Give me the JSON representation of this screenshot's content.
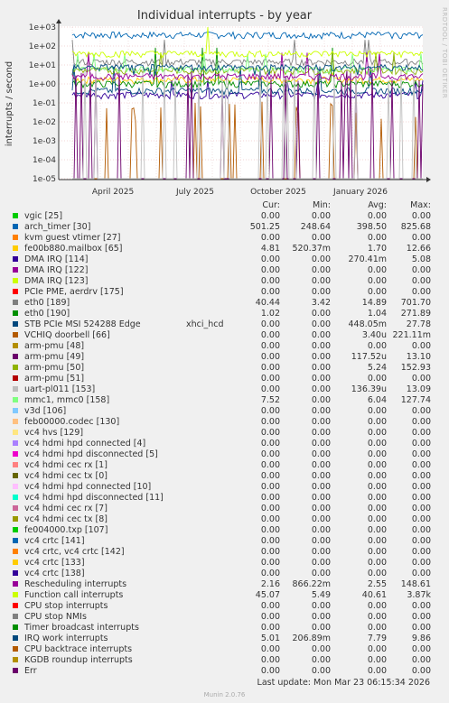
{
  "title": "Individual interrupts - by year",
  "side_credit": "RRDTOOL / TOBI OETIKER",
  "last_update": "Last update: Mon Mar 23 06:15:34 2026",
  "footer": "Munin 2.0.76",
  "chart_data": {
    "type": "line",
    "title": "Individual interrupts - by year",
    "ylabel": "interrupts / second",
    "yscale": "log",
    "ylim": [
      1e-05,
      1000
    ],
    "yticks": [
      "1e+03",
      "1e+02",
      "1e+01",
      "1e+00",
      "1e-01",
      "1e-02",
      "1e-03",
      "1e-04",
      "1e-05"
    ],
    "xticks": [
      "April 2025",
      "July 2025",
      "October 2025",
      "January 2026"
    ],
    "grid": true,
    "legend_placement": "below",
    "columns": [
      "Cur:",
      "Min:",
      "Avg:",
      "Max:"
    ],
    "series": [
      {
        "name": "vgic [25]",
        "color": "#00cc00",
        "cur": "0.00",
        "min": "0.00",
        "avg": "0.00",
        "max": "0.00"
      },
      {
        "name": "arch_timer [30]",
        "color": "#0066b3",
        "cur": "501.25",
        "min": "248.64",
        "avg": "398.50",
        "max": "825.68"
      },
      {
        "name": "kvm guest vtimer [27]",
        "color": "#ff8000",
        "cur": "0.00",
        "min": "0.00",
        "avg": "0.00",
        "max": "0.00"
      },
      {
        "name": "fe00b880.mailbox [65]",
        "color": "#ffcc00",
        "cur": "4.81",
        "min": "520.37m",
        "avg": "1.70",
        "max": "12.66"
      },
      {
        "name": "DMA IRQ [114]",
        "color": "#330099",
        "cur": "0.00",
        "min": "0.00",
        "avg": "270.41m",
        "max": "5.08"
      },
      {
        "name": "DMA IRQ [122]",
        "color": "#990099",
        "cur": "0.00",
        "min": "0.00",
        "avg": "0.00",
        "max": "0.00"
      },
      {
        "name": "DMA IRQ [123]",
        "color": "#ccff00",
        "cur": "0.00",
        "min": "0.00",
        "avg": "0.00",
        "max": "0.00"
      },
      {
        "name": "PCIe PME, aerdrv [175]",
        "color": "#ff0000",
        "cur": "0.00",
        "min": "0.00",
        "avg": "0.00",
        "max": "0.00"
      },
      {
        "name": "eth0 [189]",
        "color": "#808080",
        "cur": "40.44",
        "min": "3.42",
        "avg": "14.89",
        "max": "701.70"
      },
      {
        "name": "eth0 [190]",
        "color": "#008f00",
        "cur": "1.02",
        "min": "0.00",
        "avg": "1.04",
        "max": "271.89"
      },
      {
        "name": "STB PCIe MSI 524288 Edge",
        "extra": "xhci_hcd",
        "color": "#00487d",
        "cur": "0.00",
        "min": "0.00",
        "avg": "448.05m",
        "max": "27.78"
      },
      {
        "name": "VCHIQ doorbell [66]",
        "color": "#b35a00",
        "cur": "0.00",
        "min": "0.00",
        "avg": "3.40u",
        "max": "221.11m"
      },
      {
        "name": "arm-pmu [48]",
        "color": "#b38f00",
        "cur": "0.00",
        "min": "0.00",
        "avg": "0.00",
        "max": "0.00"
      },
      {
        "name": "arm-pmu [49]",
        "color": "#6b006b",
        "cur": "0.00",
        "min": "0.00",
        "avg": "117.52u",
        "max": "13.10"
      },
      {
        "name": "arm-pmu [50]",
        "color": "#8fb300",
        "cur": "0.00",
        "min": "0.00",
        "avg": "5.24",
        "max": "152.93"
      },
      {
        "name": "arm-pmu [51]",
        "color": "#b30000",
        "cur": "0.00",
        "min": "0.00",
        "avg": "0.00",
        "max": "0.00"
      },
      {
        "name": "uart-pl011 [153]",
        "color": "#bebebe",
        "cur": "0.00",
        "min": "0.00",
        "avg": "136.39u",
        "max": "13.09"
      },
      {
        "name": "mmc1, mmc0 [158]",
        "color": "#80ff80",
        "cur": "7.52",
        "min": "0.00",
        "avg": "6.04",
        "max": "127.74"
      },
      {
        "name": "v3d [106]",
        "color": "#80c9ff",
        "cur": "0.00",
        "min": "0.00",
        "avg": "0.00",
        "max": "0.00"
      },
      {
        "name": "feb00000.codec [130]",
        "color": "#ffc080",
        "cur": "0.00",
        "min": "0.00",
        "avg": "0.00",
        "max": "0.00"
      },
      {
        "name": "vc4 hvs [129]",
        "color": "#ffe680",
        "cur": "0.00",
        "min": "0.00",
        "avg": "0.00",
        "max": "0.00"
      },
      {
        "name": "vc4 hdmi hpd connected [4]",
        "color": "#aa80ff",
        "cur": "0.00",
        "min": "0.00",
        "avg": "0.00",
        "max": "0.00"
      },
      {
        "name": "vc4 hdmi hpd disconnected [5]",
        "color": "#ee00cc",
        "cur": "0.00",
        "min": "0.00",
        "avg": "0.00",
        "max": "0.00"
      },
      {
        "name": "vc4 hdmi cec rx [1]",
        "color": "#ff8080",
        "cur": "0.00",
        "min": "0.00",
        "avg": "0.00",
        "max": "0.00"
      },
      {
        "name": "vc4 hdmi cec tx [0]",
        "color": "#666600",
        "cur": "0.00",
        "min": "0.00",
        "avg": "0.00",
        "max": "0.00"
      },
      {
        "name": "vc4 hdmi hpd connected [10]",
        "color": "#ffbfff",
        "cur": "0.00",
        "min": "0.00",
        "avg": "0.00",
        "max": "0.00"
      },
      {
        "name": "vc4 hdmi hpd disconnected [11]",
        "color": "#00ffcc",
        "cur": "0.00",
        "min": "0.00",
        "avg": "0.00",
        "max": "0.00"
      },
      {
        "name": "vc4 hdmi cec rx [7]",
        "color": "#cc6699",
        "cur": "0.00",
        "min": "0.00",
        "avg": "0.00",
        "max": "0.00"
      },
      {
        "name": "vc4 hdmi cec tx [8]",
        "color": "#999900",
        "cur": "0.00",
        "min": "0.00",
        "avg": "0.00",
        "max": "0.00"
      },
      {
        "name": "fe004000.txp [107]",
        "color": "#00cc00",
        "cur": "0.00",
        "min": "0.00",
        "avg": "0.00",
        "max": "0.00"
      },
      {
        "name": "vc4 crtc [141]",
        "color": "#0066b3",
        "cur": "0.00",
        "min": "0.00",
        "avg": "0.00",
        "max": "0.00"
      },
      {
        "name": "vc4 crtc, vc4 crtc [142]",
        "color": "#ff8000",
        "cur": "0.00",
        "min": "0.00",
        "avg": "0.00",
        "max": "0.00"
      },
      {
        "name": "vc4 crtc [133]",
        "color": "#ffcc00",
        "cur": "0.00",
        "min": "0.00",
        "avg": "0.00",
        "max": "0.00"
      },
      {
        "name": "vc4 crtc [138]",
        "color": "#330099",
        "cur": "0.00",
        "min": "0.00",
        "avg": "0.00",
        "max": "0.00"
      },
      {
        "name": "Rescheduling interrupts",
        "color": "#990099",
        "cur": "2.16",
        "min": "866.22m",
        "avg": "2.55",
        "max": "148.61"
      },
      {
        "name": "Function call interrupts",
        "color": "#ccff00",
        "cur": "45.07",
        "min": "5.49",
        "avg": "40.61",
        "max": "3.87k"
      },
      {
        "name": "CPU stop interrupts",
        "color": "#ff0000",
        "cur": "0.00",
        "min": "0.00",
        "avg": "0.00",
        "max": "0.00"
      },
      {
        "name": "CPU stop NMIs",
        "color": "#808080",
        "cur": "0.00",
        "min": "0.00",
        "avg": "0.00",
        "max": "0.00"
      },
      {
        "name": "Timer broadcast interrupts",
        "color": "#008f00",
        "cur": "0.00",
        "min": "0.00",
        "avg": "0.00",
        "max": "0.00"
      },
      {
        "name": "IRQ work interrupts",
        "color": "#00487d",
        "cur": "5.01",
        "min": "206.89m",
        "avg": "7.79",
        "max": "9.86"
      },
      {
        "name": "CPU backtrace interrupts",
        "color": "#b35a00",
        "cur": "0.00",
        "min": "0.00",
        "avg": "0.00",
        "max": "0.00"
      },
      {
        "name": "KGDB roundup interrupts",
        "color": "#b38f00",
        "cur": "0.00",
        "min": "0.00",
        "avg": "0.00",
        "max": "0.00"
      },
      {
        "name": "Err",
        "color": "#6b006b",
        "cur": "0.00",
        "min": "0.00",
        "avg": "0.00",
        "max": "0.00"
      }
    ]
  }
}
